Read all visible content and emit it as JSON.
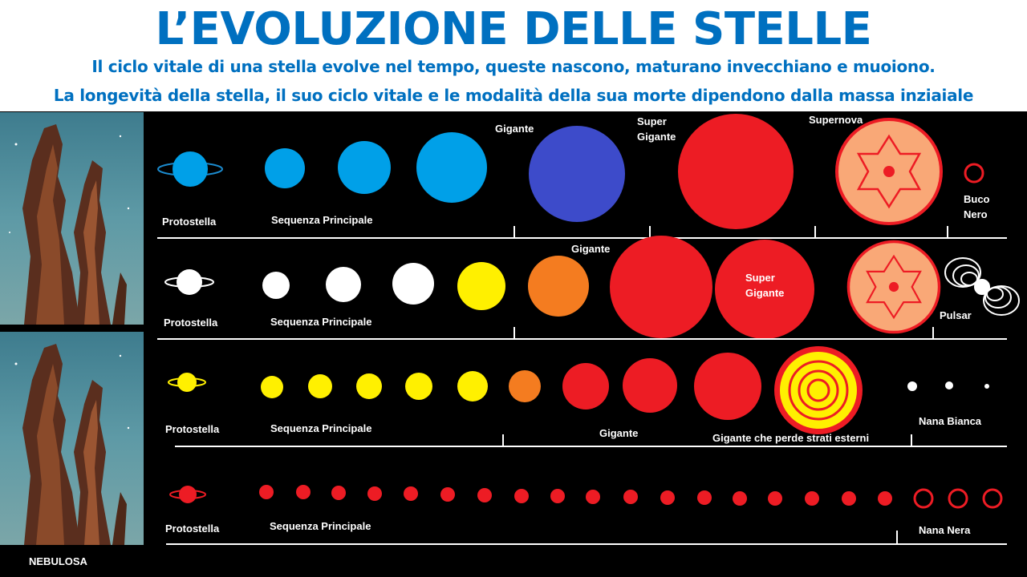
{
  "header": {
    "title": "L’EVOLUZIONE DELLE STELLE",
    "subtitle_line1": "Il ciclo vitale di una stella evolve nel tempo, queste nascono, maturano invecchiano e muoiono.",
    "subtitle_line2": "La longevità della stella, il suo ciclo vitale e le modalità della sua morte dipendono dalla massa inziaiale"
  },
  "nebula_label": "NEBULOSA",
  "colors": {
    "title_blue": "#0070C0",
    "star_blue": "#00A0E8",
    "giant_blue": "#3D4BCA",
    "red": "#ED1C24",
    "yellow": "#FFF000",
    "orange": "#F47C20",
    "supernova_fill": "#F9A877",
    "white": "#FFFFFF"
  },
  "rows": [
    {
      "name": "massive",
      "labels": {
        "protostar": "Protostella",
        "main_sequence": "Sequenza Principale",
        "giant": "Gigante",
        "supergiant": [
          "Super",
          "Gigante"
        ],
        "supernova": "Supernova",
        "remnant": [
          "Buco",
          "Nero"
        ]
      }
    },
    {
      "name": "large",
      "labels": {
        "protostar": "Protostella",
        "main_sequence": "Sequenza Principale",
        "giant": "Gigante",
        "supergiant": [
          "Super",
          "Gigante"
        ],
        "remnant": "Pulsar"
      }
    },
    {
      "name": "sun-like",
      "labels": {
        "protostar": "Protostella",
        "main_sequence": "Sequenza Principale",
        "giant": "Gigante",
        "losing_layers": "Gigante che perde strati esterni",
        "remnant": "Nana Bianca"
      }
    },
    {
      "name": "red-dwarf",
      "labels": {
        "protostar": "Protostella",
        "main_sequence": "Sequenza Principale",
        "remnant": "Nana Nera"
      }
    }
  ]
}
